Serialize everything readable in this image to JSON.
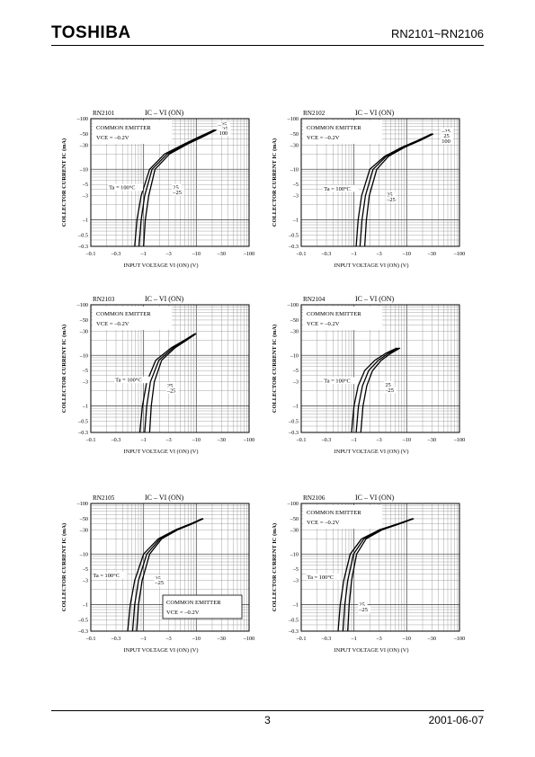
{
  "header": {
    "brand": "TOSHIBA",
    "part_range": "RN2101~RN2106"
  },
  "footer": {
    "page_number": "3",
    "date": "2001-06-07"
  },
  "chart_data": [
    {
      "type": "line",
      "part": "RN2101",
      "title": "IC – VI (ON)",
      "box_lines": [
        "COMMON EMITTER",
        "VCE = –0.2V"
      ],
      "box_position": "top-left",
      "xlabel": "INPUT VOLTAGE  VI (ON)   (V)",
      "ylabel": "COLLECTOR CURRENT  IC  (mA)",
      "x_ticks": [
        "–0.1",
        "–0.3",
        "–1",
        "–3",
        "–10",
        "–30",
        "–100"
      ],
      "y_ticks": [
        "–100",
        "–50",
        "–30",
        "–10",
        "–5",
        "–3",
        "–1",
        "–0.5",
        "–0.3"
      ],
      "xlim": [
        -0.1,
        -100
      ],
      "ylim": [
        -0.3,
        -100
      ],
      "scale": "log-log",
      "series": [
        {
          "name": "Ta = 100°C",
          "x": [
            -0.68,
            -0.75,
            -0.9,
            -1.3,
            -2.5,
            -6,
            -12,
            -22
          ],
          "y": [
            -0.3,
            -1,
            -3,
            -10,
            -20,
            -32,
            -45,
            -60
          ]
        },
        {
          "name": "25",
          "x": [
            -0.82,
            -0.9,
            -1.05,
            -1.45,
            -2.8,
            -6.5,
            -13,
            -23
          ],
          "y": [
            -0.3,
            -1,
            -3,
            -10,
            -20,
            -32,
            -45,
            -60
          ]
        },
        {
          "name": "–25",
          "x": [
            -1.0,
            -1.08,
            -1.25,
            -1.65,
            -3.1,
            -7,
            -14,
            -24
          ],
          "y": [
            -0.3,
            -1,
            -3,
            -10,
            -20,
            -32,
            -45,
            -60
          ]
        }
      ],
      "annotations": [
        {
          "text": "Ta = 100°C",
          "x": -0.22,
          "y": -4
        },
        {
          "text": "25",
          "x": -3.6,
          "y": -4
        },
        {
          "text": "–25",
          "x": -3.6,
          "y": -3.2
        },
        {
          "text": "–25",
          "x": -26,
          "y": -70
        },
        {
          "text": "25",
          "x": -31,
          "y": -58
        },
        {
          "text": "100",
          "x": -27,
          "y": -48
        }
      ]
    },
    {
      "type": "line",
      "part": "RN2102",
      "title": "IC – VI (ON)",
      "box_lines": [
        "COMMON EMITTER",
        "VCE = –0.2V"
      ],
      "box_position": "top-left",
      "xlabel": "INPUT VOLTAGE  VI (ON)   (V)",
      "ylabel": "COLLECTOR CURRENT  IC  (mA)",
      "x_ticks": [
        "–0.1",
        "–0.3",
        "–1",
        "–3",
        "–10",
        "–30",
        "–100"
      ],
      "y_ticks": [
        "–100",
        "–50",
        "–30",
        "–10",
        "–5",
        "–3",
        "–1",
        "–0.5",
        "–0.3"
      ],
      "xlim": [
        -0.1,
        -100
      ],
      "ylim": [
        -0.3,
        -100
      ],
      "scale": "log-log",
      "series": [
        {
          "name": "Ta = 100°C",
          "x": [
            -1.1,
            -1.2,
            -1.4,
            -2.0,
            -3.8,
            -8,
            -16,
            -30
          ],
          "y": [
            -0.3,
            -1,
            -3,
            -10,
            -18,
            -27,
            -37,
            -50
          ]
        },
        {
          "name": "25",
          "x": [
            -1.3,
            -1.42,
            -1.65,
            -2.3,
            -4.1,
            -8.5,
            -17,
            -31
          ],
          "y": [
            -0.3,
            -1,
            -3,
            -10,
            -18,
            -27,
            -37,
            -50
          ]
        },
        {
          "name": "–25",
          "x": [
            -1.6,
            -1.72,
            -1.95,
            -2.7,
            -4.5,
            -9,
            -18,
            -32
          ],
          "y": [
            -0.3,
            -1,
            -3,
            -10,
            -18,
            -27,
            -37,
            -50
          ]
        }
      ],
      "annotations": [
        {
          "text": "Ta = 100°C",
          "x": -0.27,
          "y": -3.8
        },
        {
          "text": "25",
          "x": -4.2,
          "y": -2.9
        },
        {
          "text": "–25",
          "x": -4.2,
          "y": -2.3
        },
        {
          "text": "–25",
          "x": -46,
          "y": -52
        },
        {
          "text": "25",
          "x": -50,
          "y": -42
        },
        {
          "text": "100",
          "x": -46,
          "y": -33
        }
      ]
    },
    {
      "type": "line",
      "part": "RN2103",
      "title": "IC – VI (ON)",
      "box_lines": [
        "COMMON EMITTER",
        "VCE = –0.2V"
      ],
      "box_position": "top-left",
      "xlabel": "INPUT VOLTAGE  VI (ON)   (V)",
      "ylabel": "COLLECTOR CURRENT  IC  (mA)",
      "x_ticks": [
        "–0.1",
        "–0.3",
        "–1",
        "–3",
        "–10",
        "–30",
        "–100"
      ],
      "y_ticks": [
        "–100",
        "–50",
        "–30",
        "–10",
        "–5",
        "–3",
        "–1",
        "–0.5",
        "–0.3"
      ],
      "xlim": [
        -0.1,
        -100
      ],
      "ylim": [
        -0.3,
        -100
      ],
      "scale": "log-log",
      "series": [
        {
          "name": "Ta = 100°C",
          "x": [
            -0.85,
            -0.95,
            -1.15,
            -1.7,
            -3.3,
            -6,
            -9.5
          ],
          "y": [
            -0.3,
            -1,
            -3,
            -8,
            -14,
            -20,
            -27
          ]
        },
        {
          "name": "25",
          "x": [
            -1.05,
            -1.15,
            -1.35,
            -1.95,
            -3.6,
            -6.3,
            -9.8
          ],
          "y": [
            -0.3,
            -1,
            -3,
            -8,
            -14,
            -20,
            -27
          ]
        },
        {
          "name": "–25",
          "x": [
            -1.3,
            -1.4,
            -1.6,
            -2.2,
            -3.9,
            -6.6,
            -10
          ],
          "y": [
            -0.3,
            -1,
            -3,
            -8,
            -14,
            -20,
            -27
          ]
        }
      ],
      "annotations": [
        {
          "text": "Ta = 100°C",
          "x": -0.29,
          "y": -3.0
        },
        {
          "text": "25",
          "x": -2.8,
          "y": -2.3
        },
        {
          "text": "–25",
          "x": -2.8,
          "y": -1.85
        }
      ]
    },
    {
      "type": "line",
      "part": "RN2104",
      "title": "IC – VI (ON)",
      "box_lines": [
        "COMMON EMITTER",
        "VCE = –0.2V"
      ],
      "box_position": "top-left",
      "xlabel": "INPUT VOLTAGE  VI (ON)   (V)",
      "ylabel": "COLLECTOR CURRENT  IC  (mA)",
      "x_ticks": [
        "–0.1",
        "–0.3",
        "–1",
        "–3",
        "–10",
        "–30",
        "–100"
      ],
      "y_ticks": [
        "–100",
        "–50",
        "–30",
        "–10",
        "–5",
        "–3",
        "–1",
        "–0.5",
        "–0.3"
      ],
      "xlim": [
        -0.1,
        -100
      ],
      "ylim": [
        -0.3,
        -100
      ],
      "scale": "log-log",
      "series": [
        {
          "name": "Ta = 100°C",
          "x": [
            -0.9,
            -1.0,
            -1.2,
            -1.6,
            -2.5,
            -4,
            -6.5
          ],
          "y": [
            -0.3,
            -1,
            -2.5,
            -5,
            -8,
            -11,
            -14
          ]
        },
        {
          "name": "25",
          "x": [
            -1.1,
            -1.22,
            -1.45,
            -1.9,
            -2.9,
            -4.5,
            -7
          ],
          "y": [
            -0.3,
            -1,
            -2.5,
            -5,
            -8,
            -11,
            -14
          ]
        },
        {
          "name": "–25",
          "x": [
            -1.35,
            -1.48,
            -1.75,
            -2.25,
            -3.3,
            -5,
            -7.5
          ],
          "y": [
            -0.3,
            -1,
            -2.5,
            -5,
            -8,
            -11,
            -14
          ]
        }
      ],
      "annotations": [
        {
          "text": "Ta = 100°C",
          "x": -0.27,
          "y": -2.9
        },
        {
          "text": "25",
          "x": -3.9,
          "y": -2.4
        },
        {
          "text": "–25",
          "x": -3.9,
          "y": -1.9
        }
      ]
    },
    {
      "type": "line",
      "part": "RN2105",
      "title": "IC – VI (ON)",
      "box_lines": [
        "COMMON EMITTER",
        "VCE = –0.2V"
      ],
      "box_position": "bottom-right",
      "xlabel": "INPUT VOLTAGE  VI (ON)   (V)",
      "ylabel": "COLLECTOR CURRENT  IC  (mA)",
      "x_ticks": [
        "–0.1",
        "–0.3",
        "–1",
        "–3",
        "–10",
        "–30",
        "–100"
      ],
      "y_ticks": [
        "–100",
        "–50",
        "–30",
        "–10",
        "–5",
        "–3",
        "–1",
        "–0.5",
        "–0.3"
      ],
      "xlim": [
        -0.1,
        -100
      ],
      "ylim": [
        -0.3,
        -100
      ],
      "scale": "log-log",
      "series": [
        {
          "name": "Ta = 100°C",
          "x": [
            -0.5,
            -0.56,
            -0.68,
            -1.0,
            -1.9,
            -4,
            -8,
            -13
          ],
          "y": [
            -0.3,
            -1,
            -3,
            -10,
            -20,
            -30,
            -40,
            -50
          ]
        },
        {
          "name": "25",
          "x": [
            -0.62,
            -0.68,
            -0.8,
            -1.15,
            -2.05,
            -4.2,
            -8.3,
            -13.3
          ],
          "y": [
            -0.3,
            -1,
            -3,
            -10,
            -20,
            -30,
            -40,
            -50
          ]
        },
        {
          "name": "–25",
          "x": [
            -0.74,
            -0.8,
            -0.94,
            -1.3,
            -2.2,
            -4.4,
            -8.6,
            -13.6
          ],
          "y": [
            -0.3,
            -1,
            -3,
            -10,
            -20,
            -30,
            -40,
            -50
          ]
        }
      ],
      "annotations": [
        {
          "text": "Ta = 100°C",
          "x": -0.11,
          "y": -3.5
        },
        {
          "text": "25",
          "x": -1.65,
          "y": -3.0
        },
        {
          "text": "–25",
          "x": -1.65,
          "y": -2.5
        }
      ]
    },
    {
      "type": "line",
      "part": "RN2106",
      "title": "IC – VI (ON)",
      "box_lines": [
        "COMMON EMITTER",
        "VCE = –0.2V"
      ],
      "box_position": "top-left",
      "xlabel": "INPUT VOLTAGE  VI (ON)   (V)",
      "ylabel": "COLLECTOR CURRENT  IC  (mA)",
      "x_ticks": [
        "–0.1",
        "–0.3",
        "–1",
        "–3",
        "–10",
        "–30",
        "–100"
      ],
      "y_ticks": [
        "–100",
        "–50",
        "–30",
        "–10",
        "–5",
        "–3",
        "–1",
        "–0.5",
        "–0.3"
      ],
      "xlim": [
        -0.1,
        -100
      ],
      "ylim": [
        -0.3,
        -100
      ],
      "scale": "log-log",
      "series": [
        {
          "name": "Ta = 100°C",
          "x": [
            -0.5,
            -0.55,
            -0.64,
            -0.85,
            -1.4,
            -3,
            -7,
            -13
          ],
          "y": [
            -0.3,
            -1,
            -3,
            -10,
            -20,
            -30,
            -40,
            -50
          ]
        },
        {
          "name": "25",
          "x": [
            -0.62,
            -0.67,
            -0.76,
            -0.98,
            -1.55,
            -3.2,
            -7.3,
            -13.3
          ],
          "y": [
            -0.3,
            -1,
            -3,
            -10,
            -20,
            -30,
            -40,
            -50
          ]
        },
        {
          "name": "–25",
          "x": [
            -0.76,
            -0.81,
            -0.9,
            -1.12,
            -1.7,
            -3.4,
            -7.6,
            -13.6
          ],
          "y": [
            -0.3,
            -1,
            -3,
            -10,
            -20,
            -30,
            -40,
            -50
          ]
        }
      ],
      "annotations": [
        {
          "text": "Ta = 100°C",
          "x": -0.13,
          "y": -3.2
        },
        {
          "text": "25",
          "x": -1.25,
          "y": -0.92
        },
        {
          "text": "–25",
          "x": -1.25,
          "y": -0.74
        }
      ]
    }
  ]
}
